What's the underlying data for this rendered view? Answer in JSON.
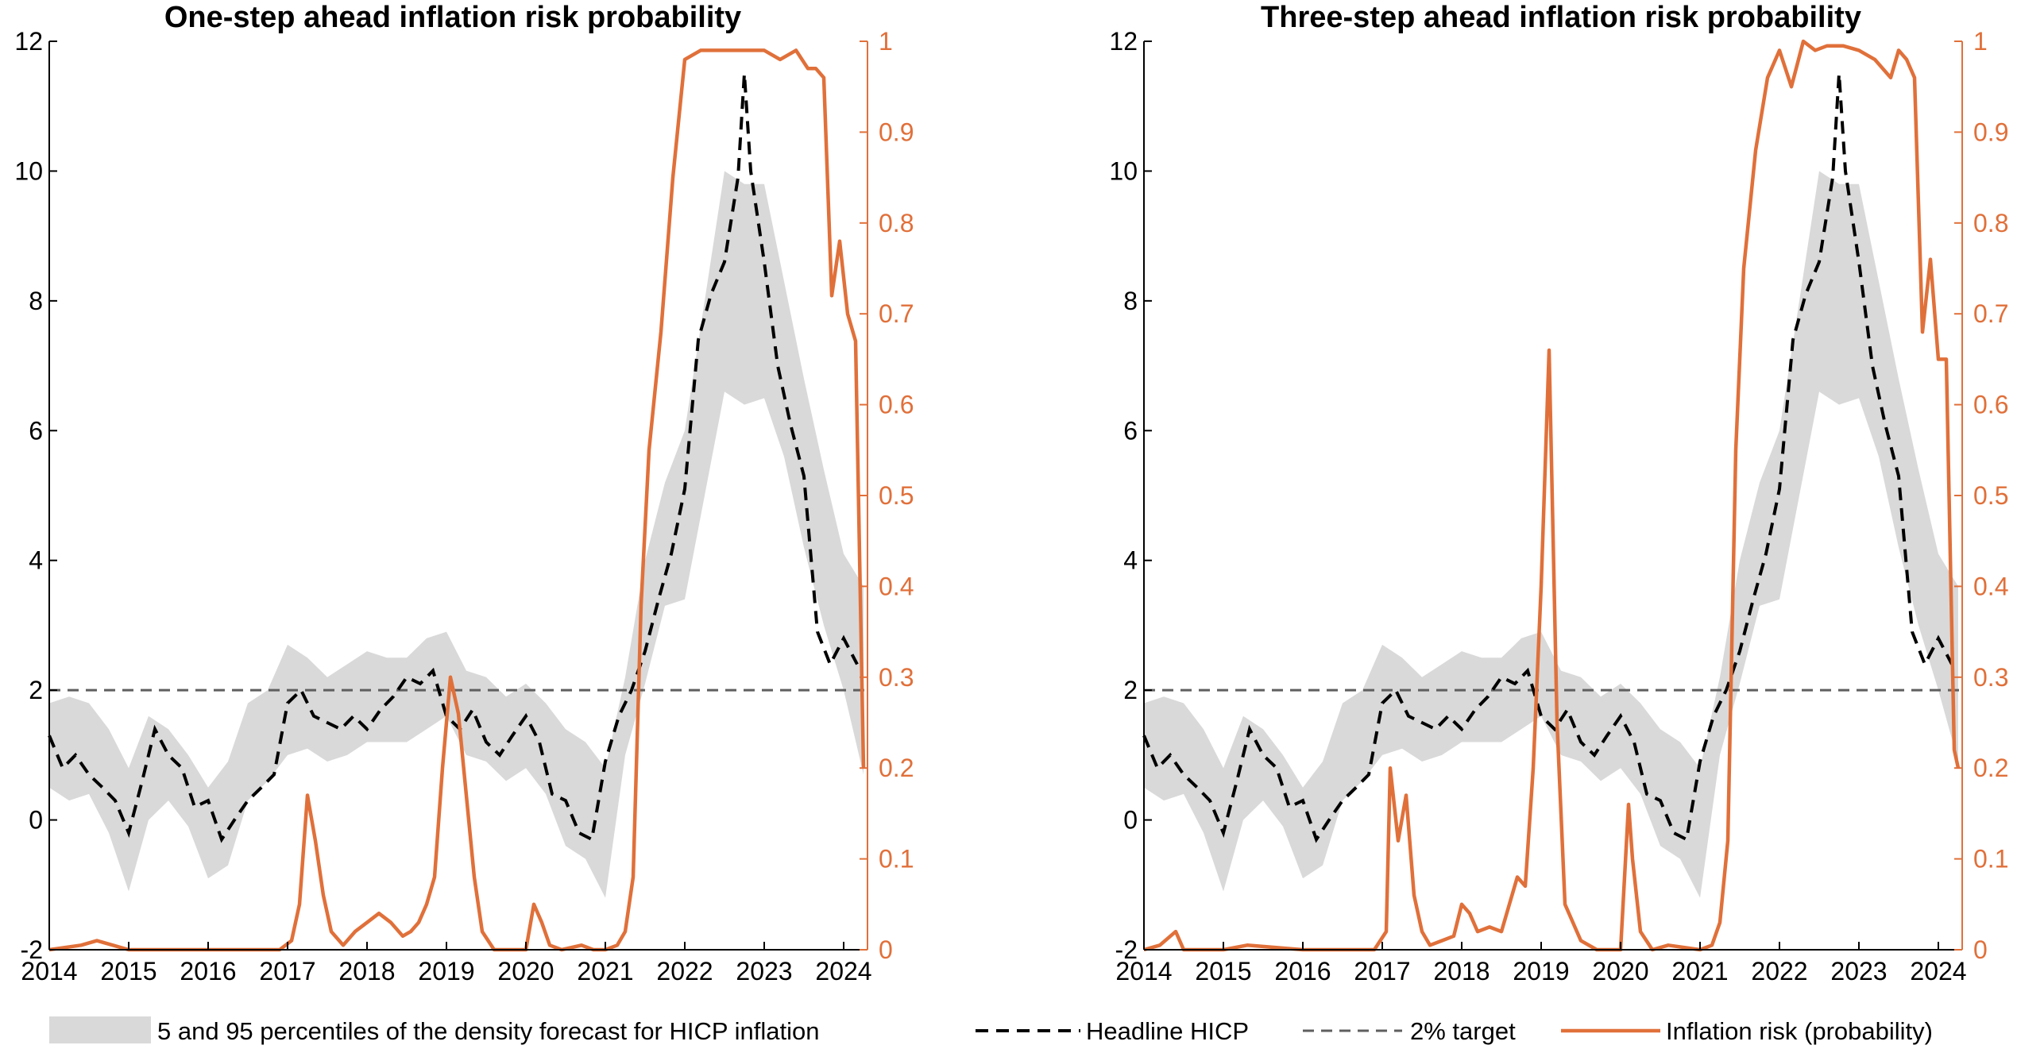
{
  "legend": {
    "band": "5 and 95 percentiles of the density forecast for HICP inflation",
    "hicp": "Headline HICP",
    "target": "2% target",
    "risk": "Inflation risk (probability)"
  },
  "colors": {
    "band": "#d9d9d9",
    "hicp": "#000000",
    "target": "#5f5f5f",
    "risk": "#e0703a",
    "right_axis": "#e0703a"
  },
  "chart_data": [
    {
      "type": "line",
      "title": "One-step ahead inflation risk probability",
      "xlim": [
        2014,
        2024.3
      ],
      "x_ticks": [
        2014,
        2015,
        2016,
        2017,
        2018,
        2019,
        2020,
        2021,
        2022,
        2023,
        2024
      ],
      "ylim_left": [
        -2,
        12
      ],
      "y_ticks_left": [
        -2,
        0,
        2,
        4,
        6,
        8,
        10,
        12
      ],
      "ylim_right": [
        0,
        1
      ],
      "y_ticks_right": [
        0,
        0.1,
        0.2,
        0.3,
        0.4,
        0.5,
        0.6,
        0.7,
        0.8,
        0.9,
        1
      ],
      "target": 2,
      "band": {
        "x": [
          2014,
          2014.25,
          2014.5,
          2014.75,
          2015,
          2015.25,
          2015.5,
          2015.75,
          2016,
          2016.25,
          2016.5,
          2016.75,
          2017,
          2017.25,
          2017.5,
          2017.75,
          2018,
          2018.25,
          2018.5,
          2018.75,
          2019,
          2019.25,
          2019.5,
          2019.75,
          2020,
          2020.25,
          2020.5,
          2020.75,
          2021,
          2021.25,
          2021.5,
          2021.75,
          2022,
          2022.25,
          2022.5,
          2022.75,
          2023,
          2023.25,
          2023.5,
          2023.75,
          2024,
          2024.25
        ],
        "lower": [
          0.5,
          0.3,
          0.4,
          -0.2,
          -1.1,
          0.0,
          0.3,
          -0.1,
          -0.9,
          -0.7,
          0.3,
          0.6,
          1.0,
          1.1,
          0.9,
          1.0,
          1.2,
          1.2,
          1.2,
          1.4,
          1.6,
          1.0,
          0.9,
          0.6,
          0.8,
          0.4,
          -0.4,
          -0.6,
          -1.2,
          1.0,
          2.1,
          3.3,
          3.4,
          5.0,
          6.6,
          6.4,
          6.5,
          5.6,
          4.2,
          3.0,
          2.0,
          0.7
        ],
        "upper": [
          1.8,
          1.9,
          1.8,
          1.4,
          0.8,
          1.6,
          1.4,
          1.0,
          0.5,
          0.9,
          1.8,
          2.0,
          2.7,
          2.5,
          2.2,
          2.4,
          2.6,
          2.5,
          2.5,
          2.8,
          2.9,
          2.3,
          2.2,
          1.9,
          2.1,
          1.8,
          1.4,
          1.2,
          0.8,
          2.2,
          4.0,
          5.2,
          6.0,
          8.0,
          10.0,
          9.8,
          9.8,
          8.3,
          6.8,
          5.4,
          4.1,
          3.6
        ]
      },
      "hicp": {
        "x": [
          2014,
          2014.17,
          2014.33,
          2014.5,
          2014.67,
          2014.83,
          2015,
          2015.17,
          2015.33,
          2015.5,
          2015.67,
          2015.83,
          2016,
          2016.17,
          2016.33,
          2016.5,
          2016.67,
          2016.83,
          2017,
          2017.17,
          2017.33,
          2017.5,
          2017.67,
          2017.83,
          2018,
          2018.17,
          2018.33,
          2018.5,
          2018.67,
          2018.83,
          2019,
          2019.17,
          2019.33,
          2019.5,
          2019.67,
          2019.83,
          2020,
          2020.17,
          2020.33,
          2020.5,
          2020.67,
          2020.83,
          2021,
          2021.17,
          2021.33,
          2021.5,
          2021.67,
          2021.83,
          2022,
          2022.17,
          2022.33,
          2022.5,
          2022.67,
          2022.75,
          2022.83,
          2023,
          2023.17,
          2023.33,
          2023.5,
          2023.67,
          2023.83,
          2024,
          2024.17
        ],
        "values": [
          1.3,
          0.8,
          1.0,
          0.7,
          0.5,
          0.3,
          -0.2,
          0.6,
          1.4,
          1.0,
          0.8,
          0.2,
          0.3,
          -0.3,
          0.0,
          0.3,
          0.5,
          0.7,
          1.8,
          2.0,
          1.6,
          1.5,
          1.4,
          1.6,
          1.4,
          1.7,
          1.9,
          2.2,
          2.1,
          2.3,
          1.6,
          1.4,
          1.7,
          1.2,
          1.0,
          1.3,
          1.6,
          1.2,
          0.4,
          0.3,
          -0.2,
          -0.3,
          0.9,
          1.6,
          2.0,
          2.6,
          3.4,
          4.1,
          5.1,
          7.4,
          8.1,
          8.6,
          9.9,
          11.5,
          10.0,
          8.6,
          7.0,
          6.1,
          5.3,
          2.9,
          2.4,
          2.8,
          2.4
        ]
      },
      "risk": {
        "x": [
          2014,
          2014.4,
          2014.6,
          2015,
          2016,
          2016.9,
          2017.05,
          2017.15,
          2017.25,
          2017.35,
          2017.45,
          2017.55,
          2017.7,
          2017.85,
          2018.0,
          2018.15,
          2018.3,
          2018.45,
          2018.55,
          2018.65,
          2018.75,
          2018.85,
          2018.95,
          2019.05,
          2019.15,
          2019.25,
          2019.35,
          2019.45,
          2019.6,
          2020.0,
          2020.1,
          2020.2,
          2020.3,
          2020.45,
          2020.7,
          2020.85,
          2021.0,
          2021.15,
          2021.25,
          2021.35,
          2021.45,
          2021.55,
          2021.7,
          2021.85,
          2022.0,
          2022.2,
          2022.4,
          2022.6,
          2022.8,
          2023.0,
          2023.2,
          2023.4,
          2023.55,
          2023.65,
          2023.75,
          2023.85,
          2023.95,
          2024.05,
          2024.15,
          2024.25
        ],
        "values": [
          0.0,
          0.005,
          0.01,
          0.0,
          0.0,
          0.0,
          0.01,
          0.05,
          0.17,
          0.12,
          0.06,
          0.02,
          0.005,
          0.02,
          0.03,
          0.04,
          0.03,
          0.015,
          0.02,
          0.03,
          0.05,
          0.08,
          0.2,
          0.3,
          0.26,
          0.17,
          0.08,
          0.02,
          0.0,
          0.0,
          0.05,
          0.03,
          0.005,
          0.0,
          0.005,
          0.0,
          0.0,
          0.005,
          0.02,
          0.08,
          0.38,
          0.55,
          0.68,
          0.85,
          0.98,
          0.99,
          0.99,
          0.99,
          0.99,
          0.99,
          0.98,
          0.99,
          0.97,
          0.97,
          0.96,
          0.72,
          0.78,
          0.7,
          0.67,
          0.2
        ]
      }
    },
    {
      "type": "line",
      "title": "Three-step ahead inflation risk probability",
      "xlim": [
        2014,
        2024.3
      ],
      "x_ticks": [
        2014,
        2015,
        2016,
        2017,
        2018,
        2019,
        2020,
        2021,
        2022,
        2023,
        2024
      ],
      "ylim_left": [
        -2,
        12
      ],
      "y_ticks_left": [
        -2,
        0,
        2,
        4,
        6,
        8,
        10,
        12
      ],
      "ylim_right": [
        0,
        1
      ],
      "y_ticks_right": [
        0,
        0.1,
        0.2,
        0.3,
        0.4,
        0.5,
        0.6,
        0.7,
        0.8,
        0.9,
        1
      ],
      "target": 2,
      "band": {
        "x": [
          2014,
          2014.25,
          2014.5,
          2014.75,
          2015,
          2015.25,
          2015.5,
          2015.75,
          2016,
          2016.25,
          2016.5,
          2016.75,
          2017,
          2017.25,
          2017.5,
          2017.75,
          2018,
          2018.25,
          2018.5,
          2018.75,
          2019,
          2019.25,
          2019.5,
          2019.75,
          2020,
          2020.25,
          2020.5,
          2020.75,
          2021,
          2021.25,
          2021.5,
          2021.75,
          2022,
          2022.25,
          2022.5,
          2022.75,
          2023,
          2023.25,
          2023.5,
          2023.75,
          2024,
          2024.25
        ],
        "lower": [
          0.5,
          0.3,
          0.4,
          -0.2,
          -1.1,
          0.0,
          0.3,
          -0.1,
          -0.9,
          -0.7,
          0.3,
          0.6,
          1.0,
          1.1,
          0.9,
          1.0,
          1.2,
          1.2,
          1.2,
          1.4,
          1.6,
          1.0,
          0.9,
          0.6,
          0.8,
          0.4,
          -0.4,
          -0.6,
          -1.2,
          1.0,
          2.1,
          3.3,
          3.4,
          5.0,
          6.6,
          6.4,
          6.5,
          5.6,
          4.2,
          3.0,
          2.0,
          0.9
        ],
        "upper": [
          1.8,
          1.9,
          1.8,
          1.4,
          0.8,
          1.6,
          1.4,
          1.0,
          0.5,
          0.9,
          1.8,
          2.0,
          2.7,
          2.5,
          2.2,
          2.4,
          2.6,
          2.5,
          2.5,
          2.8,
          2.9,
          2.3,
          2.2,
          1.9,
          2.1,
          1.8,
          1.4,
          1.2,
          0.8,
          2.2,
          4.0,
          5.2,
          6.0,
          8.0,
          10.0,
          9.8,
          9.8,
          8.3,
          6.8,
          5.4,
          4.1,
          3.6
        ]
      },
      "hicp": {
        "x": [
          2014,
          2014.17,
          2014.33,
          2014.5,
          2014.67,
          2014.83,
          2015,
          2015.17,
          2015.33,
          2015.5,
          2015.67,
          2015.83,
          2016,
          2016.17,
          2016.33,
          2016.5,
          2016.67,
          2016.83,
          2017,
          2017.17,
          2017.33,
          2017.5,
          2017.67,
          2017.83,
          2018,
          2018.17,
          2018.33,
          2018.5,
          2018.67,
          2018.83,
          2019,
          2019.17,
          2019.33,
          2019.5,
          2019.67,
          2019.83,
          2020,
          2020.17,
          2020.33,
          2020.5,
          2020.67,
          2020.83,
          2021,
          2021.17,
          2021.33,
          2021.5,
          2021.67,
          2021.83,
          2022,
          2022.17,
          2022.33,
          2022.5,
          2022.67,
          2022.75,
          2022.83,
          2023,
          2023.17,
          2023.33,
          2023.5,
          2023.67,
          2023.83,
          2024,
          2024.17
        ],
        "values": [
          1.3,
          0.8,
          1.0,
          0.7,
          0.5,
          0.3,
          -0.2,
          0.6,
          1.4,
          1.0,
          0.8,
          0.2,
          0.3,
          -0.3,
          0.0,
          0.3,
          0.5,
          0.7,
          1.8,
          2.0,
          1.6,
          1.5,
          1.4,
          1.6,
          1.4,
          1.7,
          1.9,
          2.2,
          2.1,
          2.3,
          1.6,
          1.4,
          1.7,
          1.2,
          1.0,
          1.3,
          1.6,
          1.2,
          0.4,
          0.3,
          -0.2,
          -0.3,
          0.9,
          1.6,
          2.0,
          2.6,
          3.4,
          4.1,
          5.1,
          7.4,
          8.1,
          8.6,
          9.9,
          11.5,
          10.0,
          8.6,
          7.0,
          6.1,
          5.3,
          2.9,
          2.4,
          2.8,
          2.4
        ]
      },
      "risk": {
        "x": [
          2014,
          2014.2,
          2014.4,
          2014.5,
          2015.0,
          2015.3,
          2016.0,
          2016.9,
          2017.05,
          2017.1,
          2017.2,
          2017.3,
          2017.4,
          2017.5,
          2017.6,
          2017.75,
          2017.9,
          2018.0,
          2018.1,
          2018.2,
          2018.35,
          2018.5,
          2018.6,
          2018.7,
          2018.8,
          2018.9,
          2019.0,
          2019.1,
          2019.2,
          2019.3,
          2019.5,
          2019.7,
          2020.0,
          2020.1,
          2020.15,
          2020.25,
          2020.4,
          2020.6,
          2021.0,
          2021.15,
          2021.25,
          2021.35,
          2021.45,
          2021.55,
          2021.7,
          2021.85,
          2022.0,
          2022.15,
          2022.3,
          2022.45,
          2022.6,
          2022.8,
          2023.0,
          2023.2,
          2023.4,
          2023.5,
          2023.6,
          2023.7,
          2023.8,
          2023.9,
          2024.0,
          2024.1,
          2024.2,
          2024.25
        ],
        "values": [
          0.0,
          0.005,
          0.02,
          0.0,
          0.0,
          0.005,
          0.0,
          0.0,
          0.02,
          0.2,
          0.12,
          0.17,
          0.06,
          0.02,
          0.005,
          0.01,
          0.015,
          0.05,
          0.04,
          0.02,
          0.025,
          0.02,
          0.05,
          0.08,
          0.07,
          0.2,
          0.4,
          0.66,
          0.25,
          0.05,
          0.01,
          0.0,
          0.0,
          0.16,
          0.1,
          0.02,
          0.0,
          0.005,
          0.0,
          0.005,
          0.03,
          0.12,
          0.55,
          0.75,
          0.88,
          0.96,
          0.99,
          0.95,
          1.0,
          0.99,
          0.995,
          0.995,
          0.99,
          0.98,
          0.96,
          0.99,
          0.98,
          0.96,
          0.68,
          0.76,
          0.65,
          0.65,
          0.22,
          0.2
        ]
      }
    }
  ]
}
